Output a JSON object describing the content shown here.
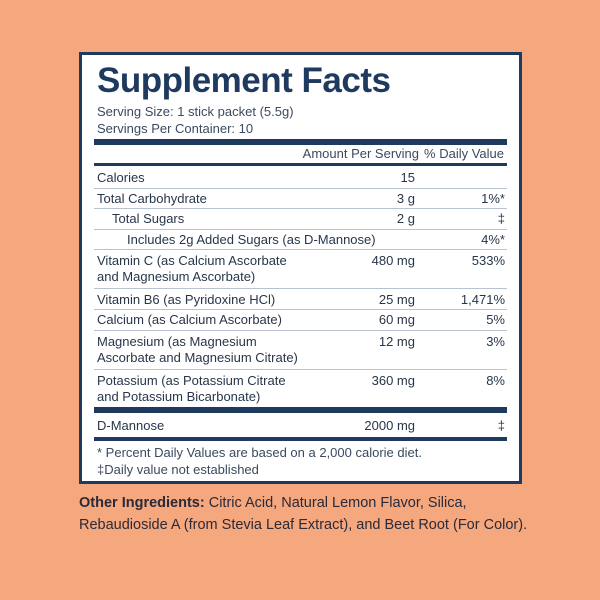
{
  "title": "Supplement Facts",
  "serving_size": "Serving Size: 1 stick packet (5.5g)",
  "servings_per_container": "Servings Per Container: 10",
  "header": {
    "amount": "Amount Per Serving",
    "dv": "% Daily Value"
  },
  "rows": [
    {
      "name": "Calories",
      "amount": "15",
      "dv": ""
    },
    {
      "name": "Total Carbohydrate",
      "amount": "3 g",
      "dv": "1%*"
    },
    {
      "name": "Total Sugars",
      "amount": "2 g",
      "dv": "‡"
    },
    {
      "name": "Includes 2g Added Sugars (as D-Mannose)",
      "amount": "",
      "dv": "4%*"
    },
    {
      "name_line1": "Vitamin C (as Calcium Ascorbate",
      "name_line2": "and Magnesium Ascorbate)",
      "amount": "480 mg",
      "dv": "533%"
    },
    {
      "name": "Vitamin B6 (as Pyridoxine HCl)",
      "amount": "25 mg",
      "dv": "1,471%"
    },
    {
      "name": "Calcium (as Calcium Ascorbate)",
      "amount": "60 mg",
      "dv": "5%"
    },
    {
      "name_line1": "Magnesium (as Magnesium",
      "name_line2": "Ascorbate and Magnesium Citrate)",
      "amount": "12 mg",
      "dv": "3%"
    },
    {
      "name_line1": "Potassium (as Potassium Citrate",
      "name_line2": "and Potassium Bicarbonate)",
      "amount": "360 mg",
      "dv": "8%"
    },
    {
      "name": "D-Mannose",
      "amount": "2000 mg",
      "dv": "‡"
    }
  ],
  "footnotes": [
    "* Percent Daily Values are based on a 2,000 calorie diet.",
    "‡Daily value not established"
  ],
  "other_ingredients": {
    "label": "Other Ingredients:",
    "text": "Citric Acid, Natural Lemon Flavor, Silica, Rebaudioside A (from Stevia Leaf Extract), and Beet Root (For Color)."
  },
  "colors": {
    "background": "#F5A77D",
    "navy": "#1F3A5F",
    "panel": "#FFFFFF"
  }
}
